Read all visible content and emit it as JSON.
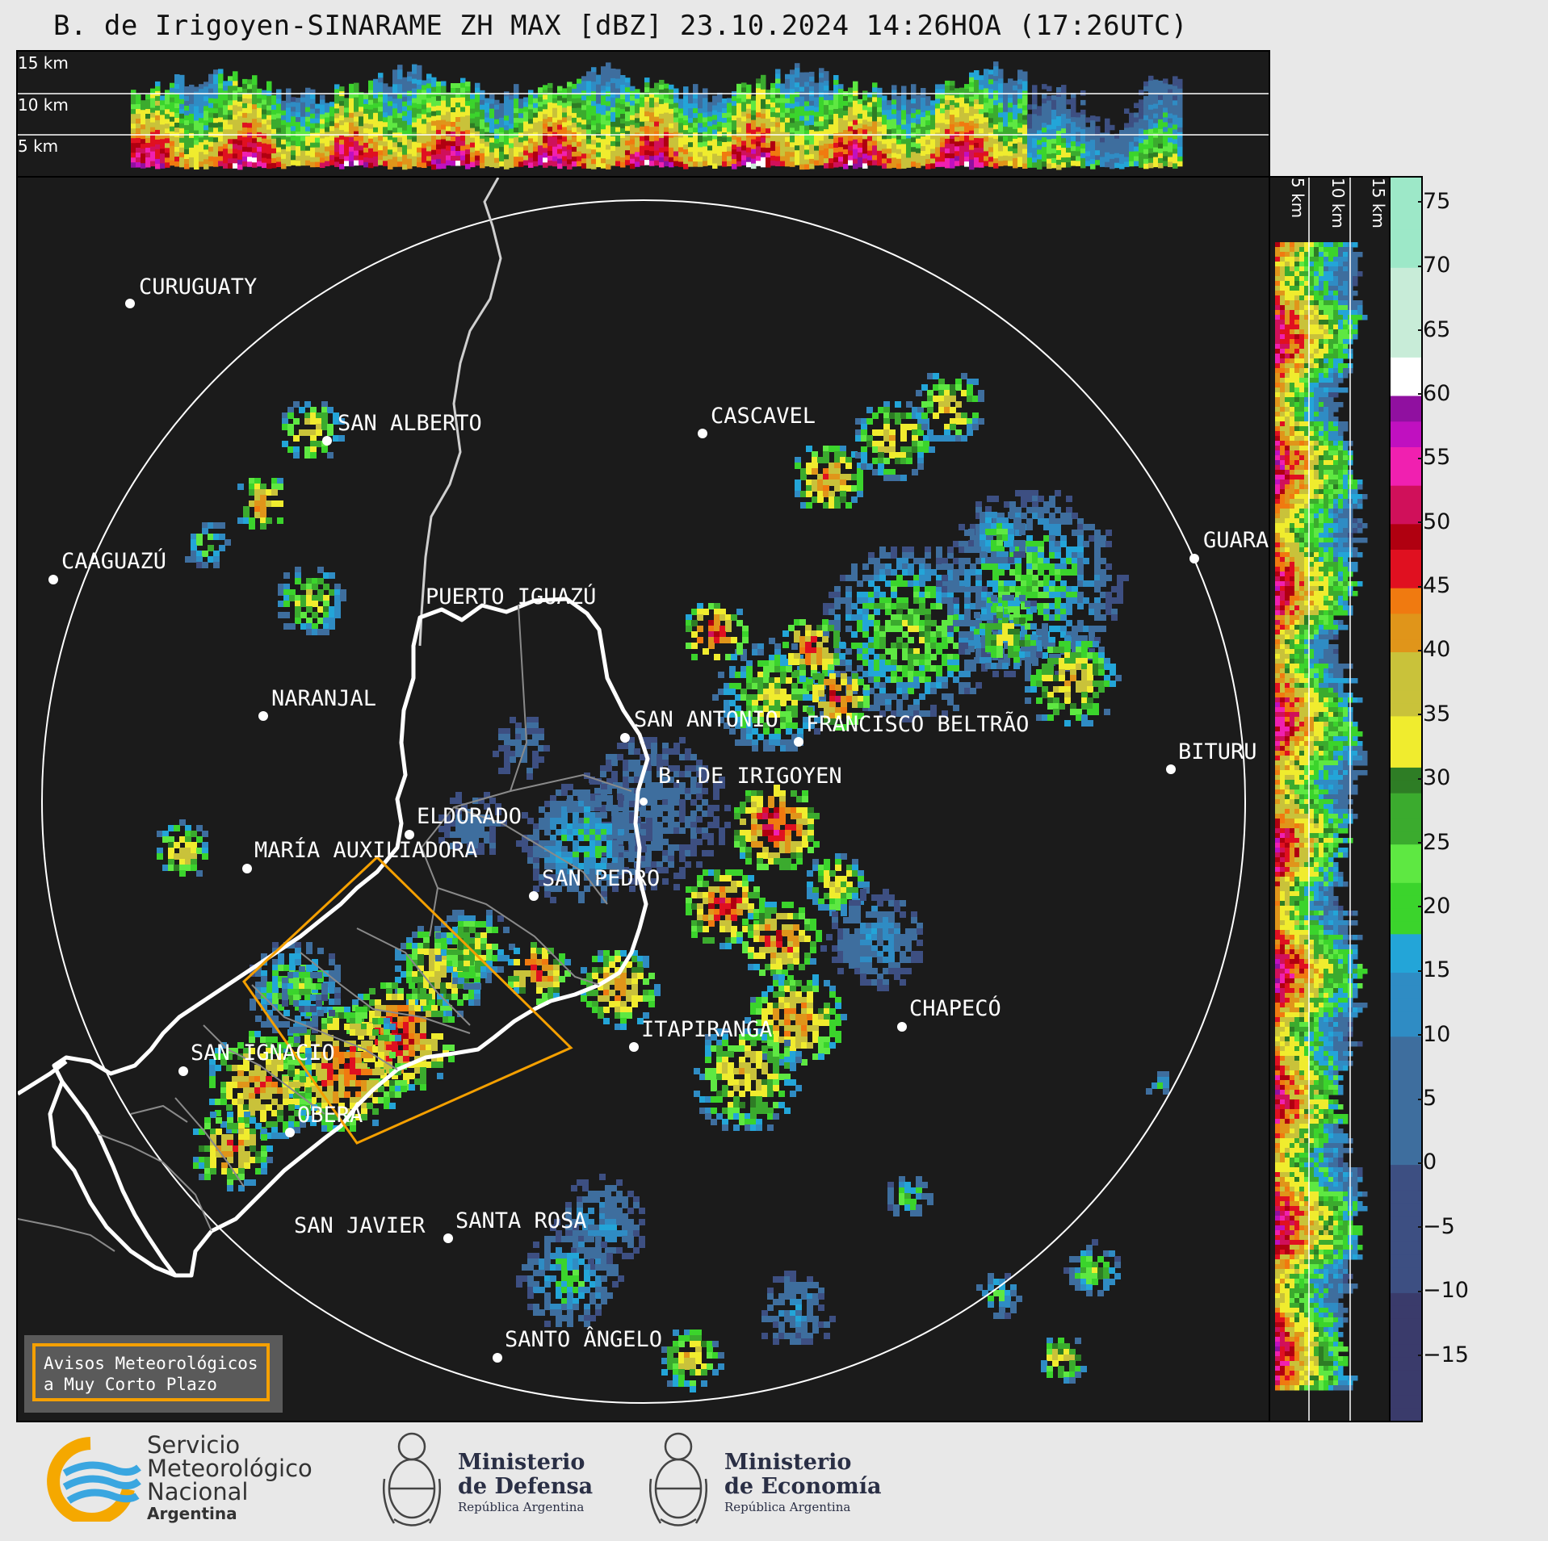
{
  "header": {
    "title": "B. de Irigoyen-SINARAME ZH MAX [dBZ] 23.10.2024 14:26HOA (17:26UTC)"
  },
  "top_panel": {
    "height_labels": [
      "15 km",
      "10 km",
      "5 km"
    ]
  },
  "right_panel": {
    "height_labels": [
      "5 km",
      "10 km",
      "15 km"
    ]
  },
  "colorbar": {
    "ticks": [
      "75",
      "70",
      "65",
      "60",
      "55",
      "50",
      "45",
      "40",
      "35",
      "30",
      "25",
      "20",
      "15",
      "10",
      "5",
      "0",
      "−5",
      "−10",
      "−15"
    ],
    "range": [
      -20,
      77
    ]
  },
  "cities": [
    {
      "name": "CURUGUATY"
    },
    {
      "name": "SAN ALBERTO"
    },
    {
      "name": "CASCAVEL"
    },
    {
      "name": "CAAGUAZÚ"
    },
    {
      "name": "GUARA"
    },
    {
      "name": "PUERTO IGUAZÚ"
    },
    {
      "name": "NARANJAL"
    },
    {
      "name": "SAN ANTONIO"
    },
    {
      "name": "FRANCISCO BELTRÃO"
    },
    {
      "name": "B. DE IRIGOYEN"
    },
    {
      "name": "BITURU"
    },
    {
      "name": "ELDORADO"
    },
    {
      "name": "MARÍA AUXILIADORA"
    },
    {
      "name": "SAN PEDRO"
    },
    {
      "name": "CHAPECÓ"
    },
    {
      "name": "ITAPIRANGA"
    },
    {
      "name": "SAN IGNACIO"
    },
    {
      "name": "OBERÁ"
    },
    {
      "name": "SAN JAVIER"
    },
    {
      "name": "SANTA ROSA"
    },
    {
      "name": "SANTO ÂNGELO"
    }
  ],
  "warning_box": {
    "line1": "Avisos Meteorológicos",
    "line2": "a Muy Corto Plazo"
  },
  "footer": {
    "smn_line1": "Servicio",
    "smn_line2": "Meteorológico",
    "smn_line3": "Nacional",
    "smn_line4": "Argentina",
    "defensa_line1": "Ministerio",
    "defensa_line2": "de Defensa",
    "defensa_line3": "República Argentina",
    "economia_line1": "Ministerio",
    "economia_line2": "de Economía",
    "economia_line3": "República Argentina"
  },
  "colors": {
    "warning_outline": "#f5a000",
    "background": "#1b1b1b"
  }
}
